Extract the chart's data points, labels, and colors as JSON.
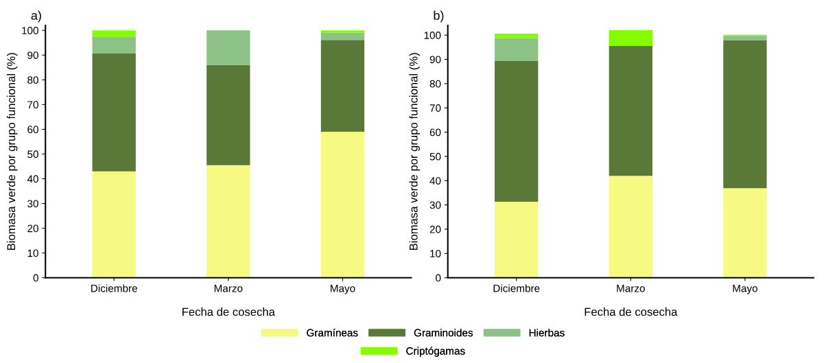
{
  "chart_data": [
    {
      "type": "bar",
      "title": "a)",
      "stacked": true,
      "xlabel": "Fecha de cosecha",
      "ylabel": "Biomasa verde por grupo funcional (%)",
      "categories": [
        "Diciembre",
        "Marzo",
        "Mayo"
      ],
      "ylim": [
        0,
        102
      ],
      "yticks": [
        0,
        10,
        20,
        30,
        40,
        50,
        60,
        70,
        80,
        90,
        100
      ],
      "legend": "bottom",
      "series": [
        {
          "name": "Gramíneas",
          "color": "#f6fa82",
          "values": [
            43.0,
            45.5,
            59.0
          ]
        },
        {
          "name": "Graminoides",
          "color": "#5a7837",
          "values": [
            47.6,
            40.5,
            37.1
          ]
        },
        {
          "name": "Hierbas",
          "color": "#8cc286",
          "values": [
            6.9,
            14.0,
            2.9
          ]
        },
        {
          "name": "Criptógamas",
          "color": "#86fc00",
          "values": [
            2.5,
            0,
            1.0
          ]
        }
      ]
    },
    {
      "type": "bar",
      "title": "b)",
      "stacked": true,
      "xlabel": "Fecha de cosecha",
      "ylabel": "Biomasa verde por grupo funcional (%)",
      "categories": [
        "Diciembre",
        "Marzo",
        "Mayo"
      ],
      "ylim": [
        0,
        104
      ],
      "yticks": [
        0,
        10,
        20,
        30,
        40,
        50,
        60,
        70,
        80,
        90,
        100
      ],
      "series": [
        {
          "color": "#f6fa82",
          "values": [
            31.3,
            42.0,
            36.9
          ]
        },
        {
          "color": "#5a7837",
          "values": [
            58.0,
            53.5,
            60.9
          ]
        },
        {
          "color": "#8cc286",
          "values": [
            9.4,
            0,
            1.9
          ]
        },
        {
          "color": "#86fc00",
          "values": [
            1.9,
            6.5,
            0.4
          ]
        }
      ]
    }
  ]
}
